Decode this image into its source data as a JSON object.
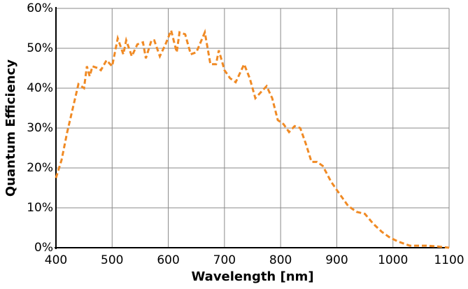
{
  "chart_data": {
    "type": "line",
    "xlabel": "Wavelength [nm]",
    "ylabel": "Quantum Efficiency",
    "color": "#f08a24",
    "x": [
      400,
      410,
      420,
      430,
      440,
      450,
      455,
      460,
      465,
      475,
      480,
      490,
      500,
      510,
      520,
      525,
      535,
      545,
      555,
      560,
      570,
      575,
      585,
      595,
      605,
      615,
      620,
      630,
      640,
      650,
      665,
      675,
      685,
      690,
      700,
      710,
      720,
      735,
      745,
      755,
      765,
      775,
      785,
      795,
      805,
      815,
      825,
      835,
      845,
      855,
      865,
      875,
      890,
      905,
      920,
      935,
      950,
      965,
      980,
      995,
      1010,
      1030,
      1060,
      1080,
      1100
    ],
    "values": [
      17.5,
      22,
      29,
      35,
      41,
      40,
      45.5,
      43,
      45.5,
      45,
      44.5,
      47,
      45.5,
      52.5,
      48.5,
      52,
      48,
      51,
      51.5,
      47.5,
      52,
      52,
      48,
      51,
      54.5,
      49,
      54,
      53.5,
      48.5,
      49,
      54,
      46,
      46,
      49.5,
      44.5,
      42.5,
      41.5,
      46,
      42.5,
      37.5,
      39,
      40.5,
      37.5,
      32,
      31,
      29,
      30.5,
      30,
      26,
      21.5,
      21.5,
      20.5,
      16.5,
      13.5,
      10.5,
      9,
      8.5,
      6,
      4,
      2.5,
      1.5,
      0.5,
      0.5,
      0.3,
      0
    ],
    "xlim": [
      400,
      1100
    ],
    "xticks": [
      400,
      500,
      600,
      700,
      800,
      900,
      1000,
      1100
    ],
    "ylim": [
      0,
      60
    ],
    "yticks": [
      {
        "value": 0,
        "label": "0%"
      },
      {
        "value": 10,
        "label": "10%"
      },
      {
        "value": 20,
        "label": "20%"
      },
      {
        "value": 30,
        "label": "30%"
      },
      {
        "value": 40,
        "label": "40%"
      },
      {
        "value": 50,
        "label": "50%"
      },
      {
        "value": 60,
        "label": "60%"
      }
    ],
    "grid": true
  }
}
